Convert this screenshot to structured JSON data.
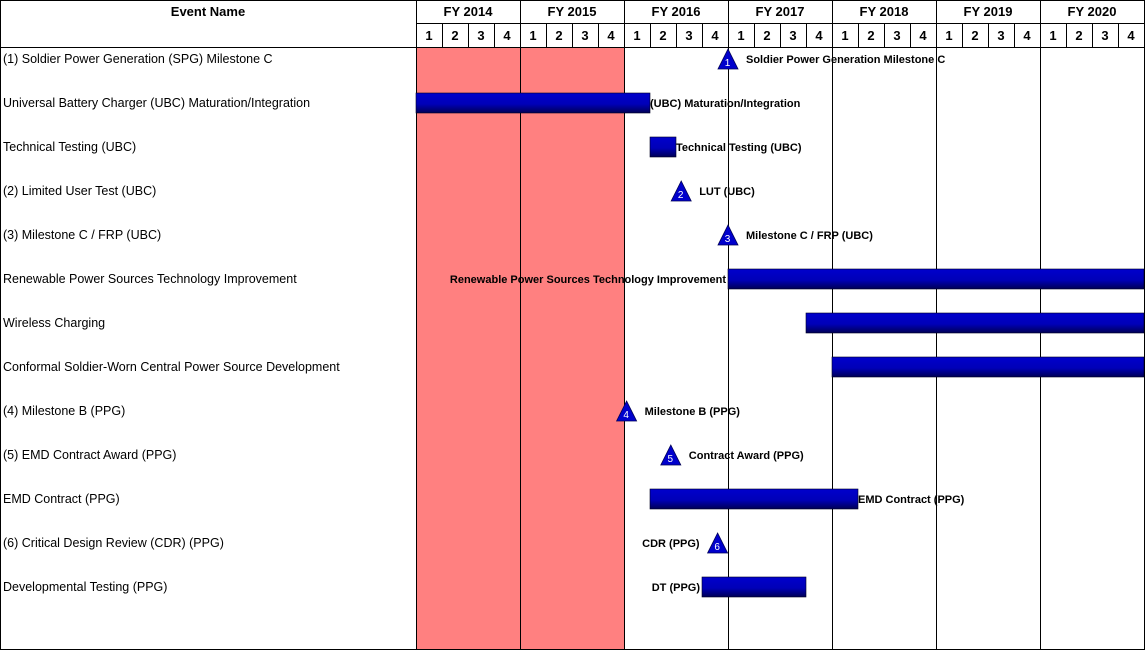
{
  "chart_data": {
    "type": "gantt",
    "header": {
      "event_col": "Event Name"
    },
    "fiscal_years": [
      "FY 2014",
      "FY 2015",
      "FY 2016",
      "FY 2017",
      "FY 2018",
      "FY 2019",
      "FY 2020"
    ],
    "quarters": [
      "1",
      "2",
      "3",
      "4"
    ],
    "highlight": {
      "start": 0,
      "end": 8,
      "color": "#FF8080"
    },
    "bar_color": "#0000CC",
    "rows": [
      {
        "name": "(1) Soldier Power Generation (SPG) Milestone C",
        "kind": "milestone",
        "num": "1",
        "at": 12,
        "label": "Soldier Power Generation Milestone C",
        "label_side": "right"
      },
      {
        "name": "Universal Battery Charger (UBC) Maturation/Integration",
        "kind": "bar",
        "start": 0,
        "end": 9,
        "label": "(UBC) Maturation/Integration",
        "label_side": "right"
      },
      {
        "name": "Technical Testing (UBC)",
        "kind": "bar",
        "start": 9,
        "end": 10,
        "label": "Technical Testing (UBC)",
        "label_side": "right"
      },
      {
        "name": "(2) Limited User Test (UBC)",
        "kind": "milestone",
        "num": "2",
        "at": 10.2,
        "label": "LUT (UBC)",
        "label_side": "right"
      },
      {
        "name": "(3) Milestone C / FRP (UBC)",
        "kind": "milestone",
        "num": "3",
        "at": 12,
        "label": "Milestone C / FRP (UBC)",
        "label_side": "right"
      },
      {
        "name": "Renewable Power Sources Technology Improvement",
        "kind": "bar",
        "start": 12,
        "end": 28,
        "label": "Renewable Power Sources Technology Improvement",
        "label_side": "left"
      },
      {
        "name": "Wireless Charging",
        "kind": "bar",
        "start": 15,
        "end": 28,
        "label": "",
        "label_side": "none"
      },
      {
        "name": "Conformal Soldier-Worn Central Power Source Development",
        "kind": "bar",
        "start": 16,
        "end": 28,
        "label": "",
        "label_side": "none"
      },
      {
        "name": "(4) Milestone B (PPG)",
        "kind": "milestone",
        "num": "4",
        "at": 8.1,
        "label": "Milestone B (PPG)",
        "label_side": "right"
      },
      {
        "name": "(5) EMD Contract Award  (PPG)",
        "kind": "milestone",
        "num": "5",
        "at": 9.8,
        "label": "Contract Award (PPG)",
        "label_side": "right"
      },
      {
        "name": "EMD Contract  (PPG)",
        "kind": "bar",
        "start": 9,
        "end": 17,
        "label": "EMD Contract (PPG)",
        "label_side": "right"
      },
      {
        "name": "(6) Critical Design Review (CDR) (PPG)",
        "kind": "milestone",
        "num": "6",
        "at": 11.6,
        "label": "CDR (PPG)",
        "label_side": "left"
      },
      {
        "name": "Developmental Testing  (PPG)",
        "kind": "bar",
        "start": 11,
        "end": 15,
        "label": "DT (PPG)",
        "label_side": "left"
      }
    ]
  }
}
